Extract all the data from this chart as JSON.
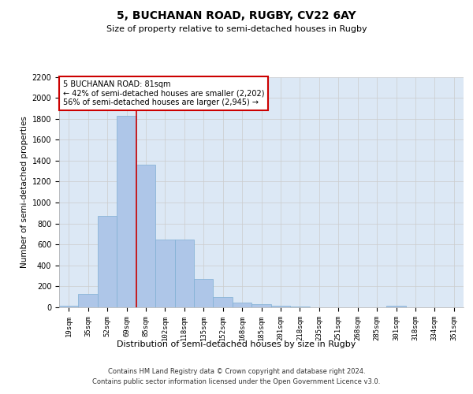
{
  "title1": "5, BUCHANAN ROAD, RUGBY, CV22 6AY",
  "title2": "Size of property relative to semi-detached houses in Rugby",
  "xlabel": "Distribution of semi-detached houses by size in Rugby",
  "ylabel": "Number of semi-detached properties",
  "categories": [
    "19sqm",
    "35sqm",
    "52sqm",
    "69sqm",
    "85sqm",
    "102sqm",
    "118sqm",
    "135sqm",
    "152sqm",
    "168sqm",
    "185sqm",
    "201sqm",
    "218sqm",
    "235sqm",
    "251sqm",
    "268sqm",
    "285sqm",
    "301sqm",
    "318sqm",
    "334sqm",
    "351sqm"
  ],
  "values": [
    12,
    130,
    870,
    1830,
    1360,
    645,
    645,
    270,
    100,
    42,
    28,
    18,
    10,
    3,
    3,
    0,
    0,
    14,
    0,
    0,
    0
  ],
  "bar_color": "#aec6e8",
  "bar_edge_color": "#7fafd4",
  "vline_x_idx": 3.5,
  "annotation_text": "5 BUCHANAN ROAD: 81sqm\n← 42% of semi-detached houses are smaller (2,202)\n56% of semi-detached houses are larger (2,945) →",
  "annotation_box_color": "#ffffff",
  "annotation_box_edge": "#cc0000",
  "vline_color": "#cc0000",
  "grid_color": "#cccccc",
  "ylim": [
    0,
    2200
  ],
  "yticks": [
    0,
    200,
    400,
    600,
    800,
    1000,
    1200,
    1400,
    1600,
    1800,
    2000,
    2200
  ],
  "footer1": "Contains HM Land Registry data © Crown copyright and database right 2024.",
  "footer2": "Contains public sector information licensed under the Open Government Licence v3.0.",
  "bg_color": "#dce8f5"
}
